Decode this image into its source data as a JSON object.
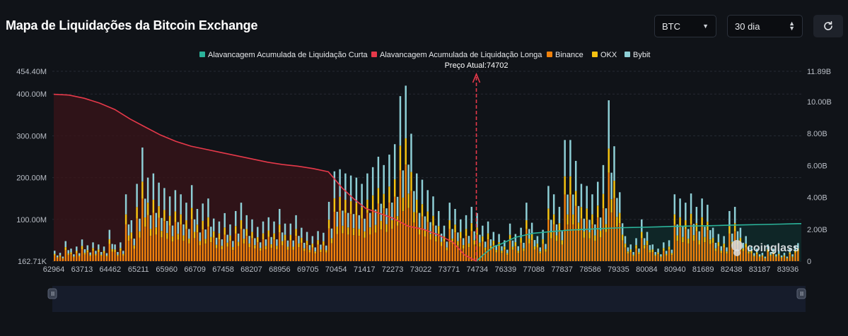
{
  "page": {
    "title": "Mapa de Liquidações da Bitcoin Exchange"
  },
  "controls": {
    "coin_select": "BTC",
    "range_select": "30 dia",
    "refresh_icon": "refresh-icon"
  },
  "watermark": "coinglass",
  "colors": {
    "short_cum": "#2bb39a",
    "long_cum": "#e6394a",
    "binance": "#f0820c",
    "okx": "#f5c211",
    "bybit": "#8ecfd6",
    "background": "#101318"
  },
  "chart_data": {
    "type": "bar",
    "legend": [
      "Alavancagem Acumulada de Liquidação Curta",
      "Alavancagem Acumulada de Liquidação Longa",
      "Binance",
      "OKX",
      "Bybit"
    ],
    "legend_position": "top-center",
    "current_price_label": "Preço Atual:74702",
    "current_price": 74702,
    "x_tick_labels": [
      "62964",
      "63713",
      "64462",
      "65211",
      "65960",
      "66709",
      "67458",
      "68207",
      "68956",
      "69705",
      "70454",
      "71417",
      "72273",
      "73022",
      "73771",
      "74734",
      "76339",
      "77088",
      "77837",
      "78586",
      "79335",
      "80084",
      "80940",
      "81689",
      "82438",
      "83187",
      "83936"
    ],
    "y_left_ticks": [
      "162.71K",
      "100.00M",
      "200.00M",
      "300.00M",
      "400.00M",
      "454.40M"
    ],
    "y_left_range": [
      0.16271,
      454.4
    ],
    "y_left_unit": "M",
    "y_right_ticks": [
      "0",
      "2.00B",
      "4.00B",
      "6.00B",
      "8.00B",
      "10.00B",
      "11.89B"
    ],
    "y_right_range": [
      0,
      11.89
    ],
    "y_right_unit": "B",
    "bar_totals_M": [
      25,
      25,
      14,
      28,
      23,
      24,
      21,
      55,
      42,
      22,
      55,
      32,
      45,
      40,
      35,
      38,
      25,
      28,
      10,
      48,
      32,
      22,
      12,
      15,
      12,
      25,
      78,
      38,
      80,
      25,
      95,
      55,
      68,
      65,
      52,
      45,
      35,
      55,
      58,
      75,
      28,
      52,
      85,
      60,
      72,
      50,
      95,
      62,
      68,
      40,
      45,
      55,
      65,
      45,
      60,
      38,
      52,
      35,
      45,
      40,
      55,
      28,
      50,
      22,
      55,
      45,
      42,
      32,
      60,
      72,
      38,
      48,
      55,
      45,
      40,
      35,
      35,
      48,
      55,
      40,
      32,
      68,
      75,
      52,
      52,
      32,
      55,
      45,
      38,
      32,
      38,
      45,
      40,
      45,
      28,
      30,
      22,
      25,
      35,
      26,
      48,
      42,
      40,
      28,
      45,
      35,
      60,
      48,
      38,
      35,
      30,
      42,
      50,
      35,
      32,
      35,
      65,
      40,
      42,
      45,
      32,
      25,
      30,
      18,
      15,
      30,
      18,
      25,
      50,
      40,
      35,
      28,
      22,
      20,
      15,
      18,
      30,
      20,
      22,
      12,
      20,
      15,
      28,
      35,
      18,
      30,
      15,
      22,
      12,
      20,
      18,
      32,
      18,
      25,
      12,
      15,
      20,
      22,
      18,
      12,
      15,
      10,
      18,
      25,
      30,
      12,
      15,
      20,
      10,
      18,
      10,
      14,
      12,
      18,
      22,
      10,
      15,
      12,
      8,
      15,
      20,
      12,
      10,
      14,
      8,
      12,
      10,
      8,
      10,
      12,
      15,
      8,
      10,
      6,
      12,
      10,
      8,
      6,
      9,
      12,
      8,
      10,
      7,
      9,
      6,
      8,
      7,
      9,
      10,
      6,
      8,
      7,
      8,
      6,
      7,
      9,
      6,
      5,
      8,
      6,
      7,
      5,
      6,
      8,
      5,
      6,
      7
    ],
    "bar_totals_M_override": [
      [
        0,
        25
      ],
      [
        2,
        20
      ],
      [
        4,
        48
      ],
      [
        6,
        30
      ],
      [
        8,
        35
      ],
      [
        10,
        52
      ],
      [
        12,
        38
      ],
      [
        14,
        45
      ],
      [
        16,
        40
      ],
      [
        18,
        35
      ],
      [
        20,
        75
      ],
      [
        22,
        40
      ],
      [
        24,
        45
      ],
      [
        26,
        160
      ],
      [
        28,
        98
      ],
      [
        30,
        185
      ],
      [
        32,
        272
      ],
      [
        34,
        200
      ],
      [
        36,
        210
      ],
      [
        38,
        188
      ],
      [
        40,
        175
      ],
      [
        42,
        155
      ],
      [
        44,
        170
      ],
      [
        46,
        160
      ],
      [
        48,
        140
      ],
      [
        50,
        182
      ],
      [
        52,
        125
      ],
      [
        54,
        138
      ],
      [
        56,
        150
      ],
      [
        58,
        102
      ],
      [
        60,
        95
      ],
      [
        62,
        115
      ],
      [
        64,
        88
      ],
      [
        66,
        120
      ],
      [
        68,
        140
      ],
      [
        70,
        110
      ],
      [
        72,
        100
      ],
      [
        74,
        82
      ],
      [
        76,
        95
      ],
      [
        78,
        105
      ],
      [
        80,
        95
      ],
      [
        82,
        125
      ],
      [
        84,
        90
      ],
      [
        86,
        90
      ],
      [
        88,
        110
      ],
      [
        90,
        80
      ],
      [
        92,
        70
      ],
      [
        94,
        60
      ],
      [
        96,
        72
      ],
      [
        98,
        68
      ],
      [
        100,
        142
      ],
      [
        102,
        215
      ],
      [
        104,
        220
      ],
      [
        106,
        210
      ],
      [
        108,
        205
      ],
      [
        110,
        200
      ],
      [
        112,
        185
      ],
      [
        114,
        210
      ],
      [
        116,
        225
      ],
      [
        118,
        250
      ],
      [
        120,
        230
      ],
      [
        122,
        255
      ],
      [
        124,
        280
      ],
      [
        126,
        395
      ],
      [
        128,
        420
      ],
      [
        130,
        305
      ],
      [
        132,
        210
      ],
      [
        134,
        195
      ],
      [
        136,
        170
      ],
      [
        138,
        155
      ],
      [
        140,
        120
      ],
      [
        142,
        85
      ],
      [
        144,
        140
      ],
      [
        146,
        125
      ],
      [
        148,
        100
      ],
      [
        150,
        110
      ],
      [
        152,
        130
      ],
      [
        154,
        115
      ],
      [
        156,
        85
      ],
      [
        158,
        95
      ],
      [
        160,
        70
      ],
      [
        162,
        65
      ],
      [
        164,
        50
      ],
      [
        166,
        90
      ],
      [
        168,
        65
      ],
      [
        170,
        80
      ],
      [
        172,
        140
      ],
      [
        174,
        92
      ],
      [
        176,
        60
      ],
      [
        178,
        75
      ],
      [
        180,
        180
      ],
      [
        182,
        160
      ],
      [
        184,
        130
      ],
      [
        186,
        290
      ],
      [
        188,
        290
      ],
      [
        190,
        240
      ],
      [
        192,
        185
      ],
      [
        194,
        180
      ],
      [
        196,
        160
      ],
      [
        198,
        190
      ],
      [
        200,
        230
      ],
      [
        202,
        385
      ],
      [
        204,
        275
      ],
      [
        206,
        165
      ],
      [
        208,
        60
      ],
      [
        210,
        40
      ],
      [
        212,
        55
      ],
      [
        214,
        100
      ],
      [
        216,
        70
      ],
      [
        218,
        40
      ],
      [
        220,
        30
      ],
      [
        222,
        45
      ],
      [
        224,
        50
      ],
      [
        226,
        160
      ],
      [
        228,
        150
      ],
      [
        230,
        140
      ],
      [
        232,
        162
      ],
      [
        234,
        130
      ],
      [
        236,
        150
      ],
      [
        238,
        135
      ],
      [
        240,
        80
      ],
      [
        242,
        65
      ],
      [
        244,
        60
      ],
      [
        246,
        120
      ],
      [
        248,
        130
      ],
      [
        250,
        80
      ],
      [
        252,
        60
      ],
      [
        254,
        35
      ],
      [
        256,
        30
      ],
      [
        258,
        20
      ],
      [
        260,
        40
      ],
      [
        262,
        30
      ],
      [
        264,
        25
      ],
      [
        266,
        20
      ],
      [
        268,
        30
      ]
    ],
    "series": [
      {
        "name": "Alavancagem Acumulada de Liquidação Longa",
        "unit": "B",
        "x_start": 62964,
        "x_end": 74702,
        "values": [
          10.45,
          10.4,
          10.2,
          9.9,
          9.5,
          8.9,
          8.4,
          7.9,
          7.5,
          7.2,
          7.0,
          6.8,
          6.6,
          6.4,
          6.2,
          6.05,
          5.95,
          5.8,
          5.6,
          4.6,
          3.9,
          3.3,
          3.0,
          2.7,
          2.2,
          2.0,
          1.65,
          1.2,
          0.4,
          0
        ]
      },
      {
        "name": "Alavancagem Acumulada de Liquidação Curta",
        "unit": "B",
        "x_start": 74702,
        "x_end": 84200,
        "values": [
          0,
          0.5,
          0.9,
          1.1,
          1.5,
          1.75,
          1.85,
          1.95,
          2.0,
          2.05,
          2.1,
          2.12,
          2.15,
          2.18,
          2.2,
          2.22,
          2.25,
          2.27,
          2.3,
          2.32,
          2.35
        ]
      }
    ]
  }
}
